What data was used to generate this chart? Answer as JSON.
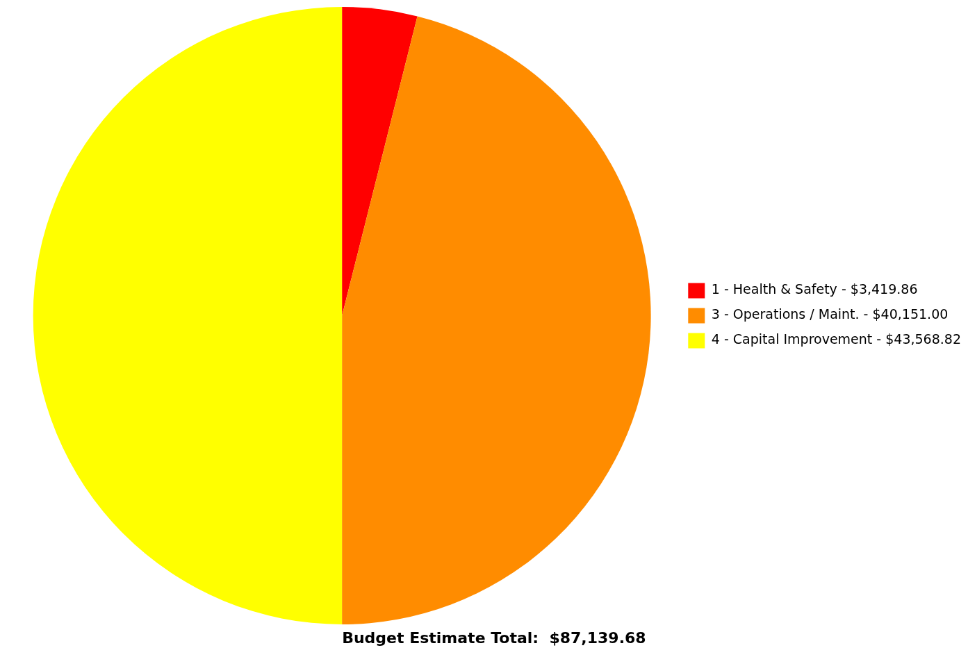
{
  "chart_data": {
    "type": "pie",
    "categories": [
      "1 - Health & Safety",
      "3 - Operations / Maint.",
      "4 - Capital Improvement"
    ],
    "values": [
      3419.86,
      40151.0,
      43568.82
    ],
    "value_labels": [
      "$3,419.86",
      "$40,151.00",
      "$43,568.82"
    ],
    "colors": [
      "#ff0000",
      "#ff8c00",
      "#ffff00"
    ],
    "legend": "right",
    "annotations": [
      "Budget Estimate Total:  $87,139.68"
    ]
  }
}
